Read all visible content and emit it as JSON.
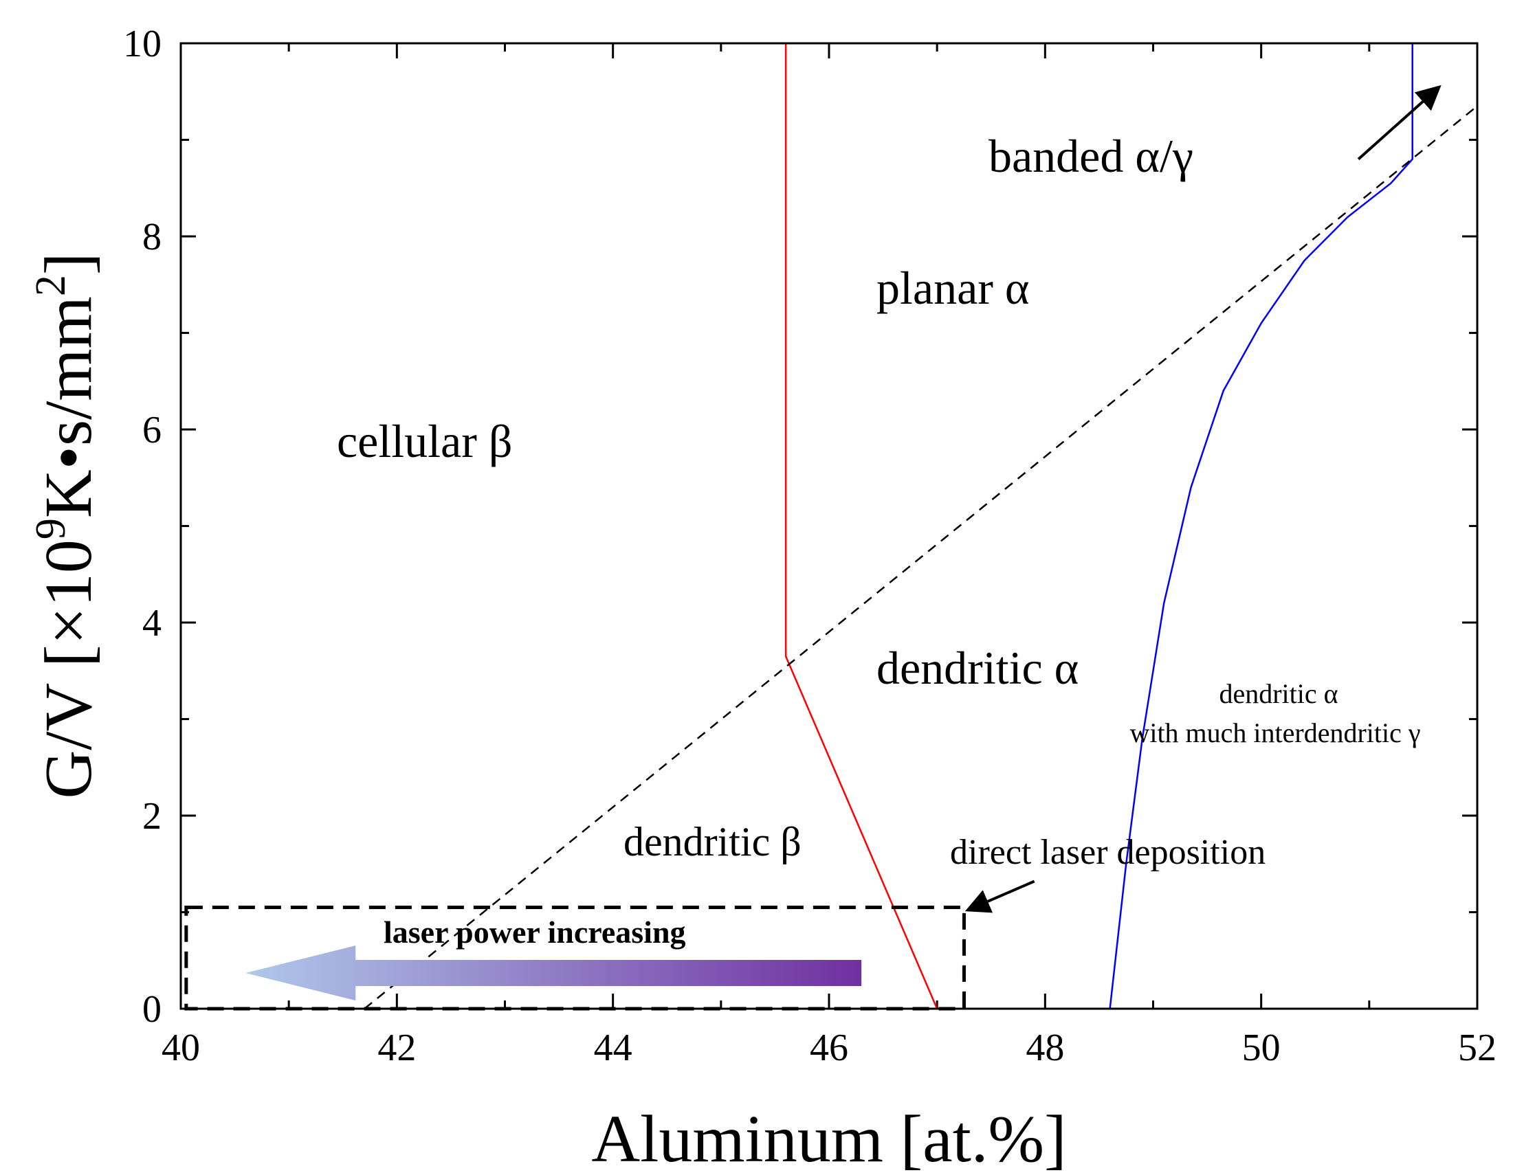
{
  "chart_data": {
    "type": "line",
    "title": "",
    "xlabel": "Aluminum [at.%]",
    "ylabel_parts": {
      "prefix": "G/V [×10",
      "exp": "9",
      "mid": "K•s/mm",
      "exp2": "2",
      "suffix": "]"
    },
    "xlim": [
      40,
      52
    ],
    "ylim": [
      0,
      10
    ],
    "x_ticks": [
      40,
      42,
      44,
      46,
      48,
      50,
      52
    ],
    "y_ticks": [
      0,
      2,
      4,
      6,
      8,
      10
    ],
    "x_tick_labels": [
      "40",
      "42",
      "44",
      "46",
      "48",
      "50",
      "52"
    ],
    "y_tick_labels": [
      "0",
      "2",
      "4",
      "6",
      "8",
      "10"
    ],
    "series": [
      {
        "name": "beta/alpha boundary",
        "color": "#ff0000",
        "style": "solid",
        "points": [
          [
            45.6,
            10
          ],
          [
            45.6,
            3.65
          ],
          [
            47.0,
            0
          ]
        ]
      },
      {
        "name": "dendritic alpha / interdendritic gamma boundary",
        "color": "#0000ff",
        "style": "solid",
        "points": [
          [
            48.6,
            0
          ],
          [
            48.75,
            1.5
          ],
          [
            48.9,
            2.8
          ],
          [
            49.1,
            4.2
          ],
          [
            49.35,
            5.4
          ],
          [
            49.65,
            6.4
          ],
          [
            50.0,
            7.1
          ],
          [
            50.4,
            7.75
          ],
          [
            50.8,
            8.2
          ],
          [
            51.2,
            8.55
          ],
          [
            51.4,
            8.8
          ],
          [
            51.4,
            10
          ]
        ]
      },
      {
        "name": "planar / dendritic boundary",
        "color": "#000000",
        "style": "dashed",
        "points": [
          [
            41.7,
            0
          ],
          [
            52,
            9.35
          ]
        ]
      }
    ],
    "regions": {
      "cellular_beta": "cellular β",
      "planar_alpha": "planar α",
      "dendritic_alpha": "dendritic α",
      "dendritic_beta": "dendritic β",
      "dendritic_alpha_gamma_1": "dendritic α",
      "dendritic_alpha_gamma_2": "with much interdendritic γ",
      "banded": "banded α/γ"
    },
    "annotations": {
      "dld_label": "direct laser deposition",
      "dld_box": {
        "x": [
          40.05,
          47.25
        ],
        "y": [
          0,
          1.05
        ]
      },
      "arrow_label": "laser power increasing",
      "arrow_label_color": "#8b4513",
      "arrow_range": {
        "x": [
          46.3,
          40.6
        ],
        "y": 0.37
      },
      "arrow_colors": [
        "#b0c8ea",
        "#7030a0"
      ]
    }
  }
}
